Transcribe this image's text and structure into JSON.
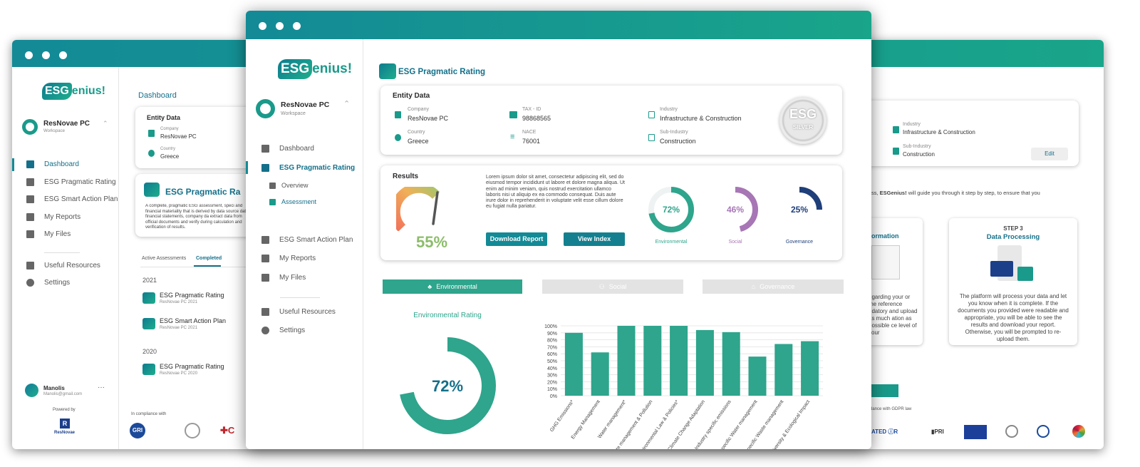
{
  "back_window": {
    "logo": {
      "es": "ESG",
      "rest": "enius!"
    },
    "workspace": {
      "name": "ResNovae PC",
      "sub": "Workspace"
    },
    "nav": [
      "Dashboard",
      "ESG Pragmatic Rating",
      "ESG Smart Action Plan",
      "My Reports",
      "My Files",
      "Useful Resources",
      "Settings"
    ],
    "user": {
      "name": "Manolis",
      "email": "Manolis@gmail.com"
    },
    "powered_by": "Powered by",
    "powered_brand": "ResNovae",
    "page_title": "Dashboard",
    "entity": {
      "title": "Entity Data",
      "company_label": "Company",
      "company": "ResNovae PC",
      "country_label": "Country",
      "country": "Greece"
    },
    "promo": {
      "title": "ESG Pragmatic Ra",
      "text": "A complete, pragmatic ESG assessment, speci and financial materiality that is derived by data source data, financial statements, company da extract data from official documents and verify during calculation and verification of results."
    },
    "tabs": [
      "Active Assessments",
      "Completed"
    ],
    "years": [
      {
        "year": "2021",
        "items": [
          {
            "title": "ESG Pragmatic Rating",
            "sub": "ResNovae PC 2021"
          },
          {
            "title": "ESG Smart Action Plan",
            "sub": "ResNovae PC 2021"
          }
        ]
      },
      {
        "year": "2020",
        "items": [
          {
            "title": "ESG Pragmatic Rating",
            "sub": "ResNovae PC 2020"
          }
        ]
      }
    ],
    "compliance": "In compliance with",
    "right": {
      "industry_label": "Industry",
      "industry": "Infrastructure & Construction",
      "subindustry_label": "Sub-Industry",
      "subindustry": "Construction",
      "edit": "Edit",
      "guide_prefix": "ss, ",
      "guide_brand": "ESGenius!",
      "guide_suffix": " will guide you through it step by step, to ensure that you",
      "step_partial_title": "ormation",
      "step_partial_text": "egarding your or the reference ndatory and upload as much ation as possible ce level of your",
      "step3_label": "STEP 3",
      "step3_title": "Data Processing",
      "step3_text": "The platform will process your data and let you know when it is complete. If the documents you provided were readable and appropriate, you will be able to see the results and download your report. Otherwise, you will be prompted to re-upload them.",
      "gdpr": "dance with GDPR law"
    }
  },
  "main_window": {
    "logo": {
      "es": "ESG",
      "rest": "enius!"
    },
    "workspace": {
      "name": "ResNovae PC",
      "sub": "Workspace"
    },
    "nav": {
      "dashboard": "Dashboard",
      "pragmatic": "ESG Pragmatic Rating",
      "overview": "Overview",
      "assessment": "Assessment",
      "action_plan": "ESG Smart Action Plan",
      "reports": "My Reports",
      "files": "My Files",
      "resources": "Useful Resources",
      "settings": "Settings"
    },
    "page_title": "ESG Pragmatic Rating",
    "entity": {
      "title": "Entity Data",
      "company_label": "Company",
      "company": "ResNovae PC",
      "taxid_label": "TAX - ID",
      "taxid": "98868565",
      "industry_label": "Industry",
      "industry": "Infrastructure & Construction",
      "country_label": "Country",
      "country": "Greece",
      "nace_label": "NACE",
      "nace": "76001",
      "subindustry_label": "Sub-Industry",
      "subindustry": "Construction",
      "badge_main": "ESG",
      "badge_sub": "SILVER"
    },
    "results": {
      "title": "Results",
      "score": "55%",
      "score_value": 55,
      "text": "Lorem ipsum dolor sit amet, consectetur adipiscing elit, sed do eiusmod tempor incididunt ut labore et dolore magna aliqua. Ut enim ad minim veniam, quis nostrud exercitation ullamco laboris nisi ut aliquip ex ea commodo consequat. Duis aute irure dolor in reprehenderit in voluptate velit esse cillum dolore eu fugiat nulla pariatur.",
      "download": "Download Report",
      "view_index": "View Index",
      "env": {
        "value": "72%",
        "pct": 72,
        "label": "Environmental",
        "color": "#2ea58c"
      },
      "soc": {
        "value": "46%",
        "pct": 46,
        "label": "Social",
        "color": "#a776b5"
      },
      "gov": {
        "value": "25%",
        "pct": 25,
        "label": "Governance",
        "color": "#1f3f7a"
      }
    },
    "tabs": {
      "environmental": "Environmental",
      "social": "Social",
      "governance": "Governance"
    },
    "env_rating": {
      "title": "Environmental Rating",
      "value": "72%",
      "pct": 72
    }
  },
  "chart_data": {
    "type": "bar",
    "categories": [
      "GHG Emissions*",
      "Energy Management",
      "Water management*",
      "Waste management & Pollution",
      "Environmental Law & Policies*",
      "Climate Change Adaptation",
      "Industry specific emissions",
      "Industry specific Water management",
      "Industry specific Waste management",
      "Biodiversity & Ecological Impact"
    ],
    "values": [
      90,
      62,
      100,
      100,
      100,
      94,
      91,
      56,
      74,
      78
    ],
    "ylim": [
      0,
      100
    ],
    "yticks": [
      "100%",
      "90%",
      "80%",
      "70%",
      "60%",
      "50%",
      "40%",
      "30%",
      "20%",
      "10%",
      "0%"
    ],
    "grid": true,
    "color": "#2ea58c"
  }
}
